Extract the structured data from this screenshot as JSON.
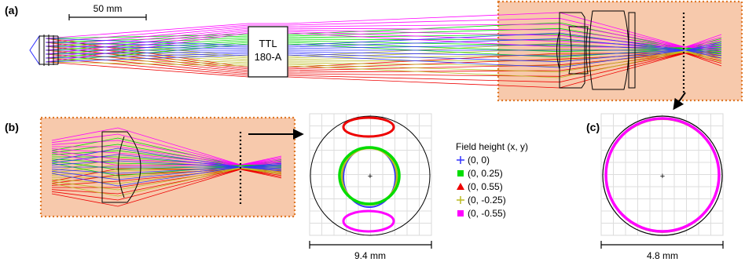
{
  "panel_labels": {
    "a": "(a)",
    "b": "(b)",
    "c": "(c)"
  },
  "scale_bar": {
    "label": "50 mm"
  },
  "lens_box": {
    "line1": "TTL",
    "line2": "180-A"
  },
  "legend": {
    "title": "Field height (x, y)",
    "items": [
      {
        "label": "(0, 0)",
        "color": "#3333ff",
        "marker": "plus"
      },
      {
        "label": "(0, 0.25)",
        "color": "#00dd00",
        "marker": "square"
      },
      {
        "label": "(0, 0.55)",
        "color": "#ee0000",
        "marker": "triangle"
      },
      {
        "label": "(0, -0.25)",
        "color": "#bbbb22",
        "marker": "plus"
      },
      {
        "label": "(0, -0.55)",
        "color": "#ff00ff",
        "marker": "square"
      }
    ]
  },
  "footprint_b": {
    "dimension": "9.4 mm"
  },
  "footprint_c": {
    "dimension": "4.8 mm"
  },
  "colors": {
    "highlight_fill": "#f7c9ac",
    "highlight_border": "#e07a2a",
    "blue": "#3333ff",
    "green": "#00dd00",
    "red": "#ee0000",
    "olive": "#bbbb22",
    "magenta": "#ff00ff"
  }
}
